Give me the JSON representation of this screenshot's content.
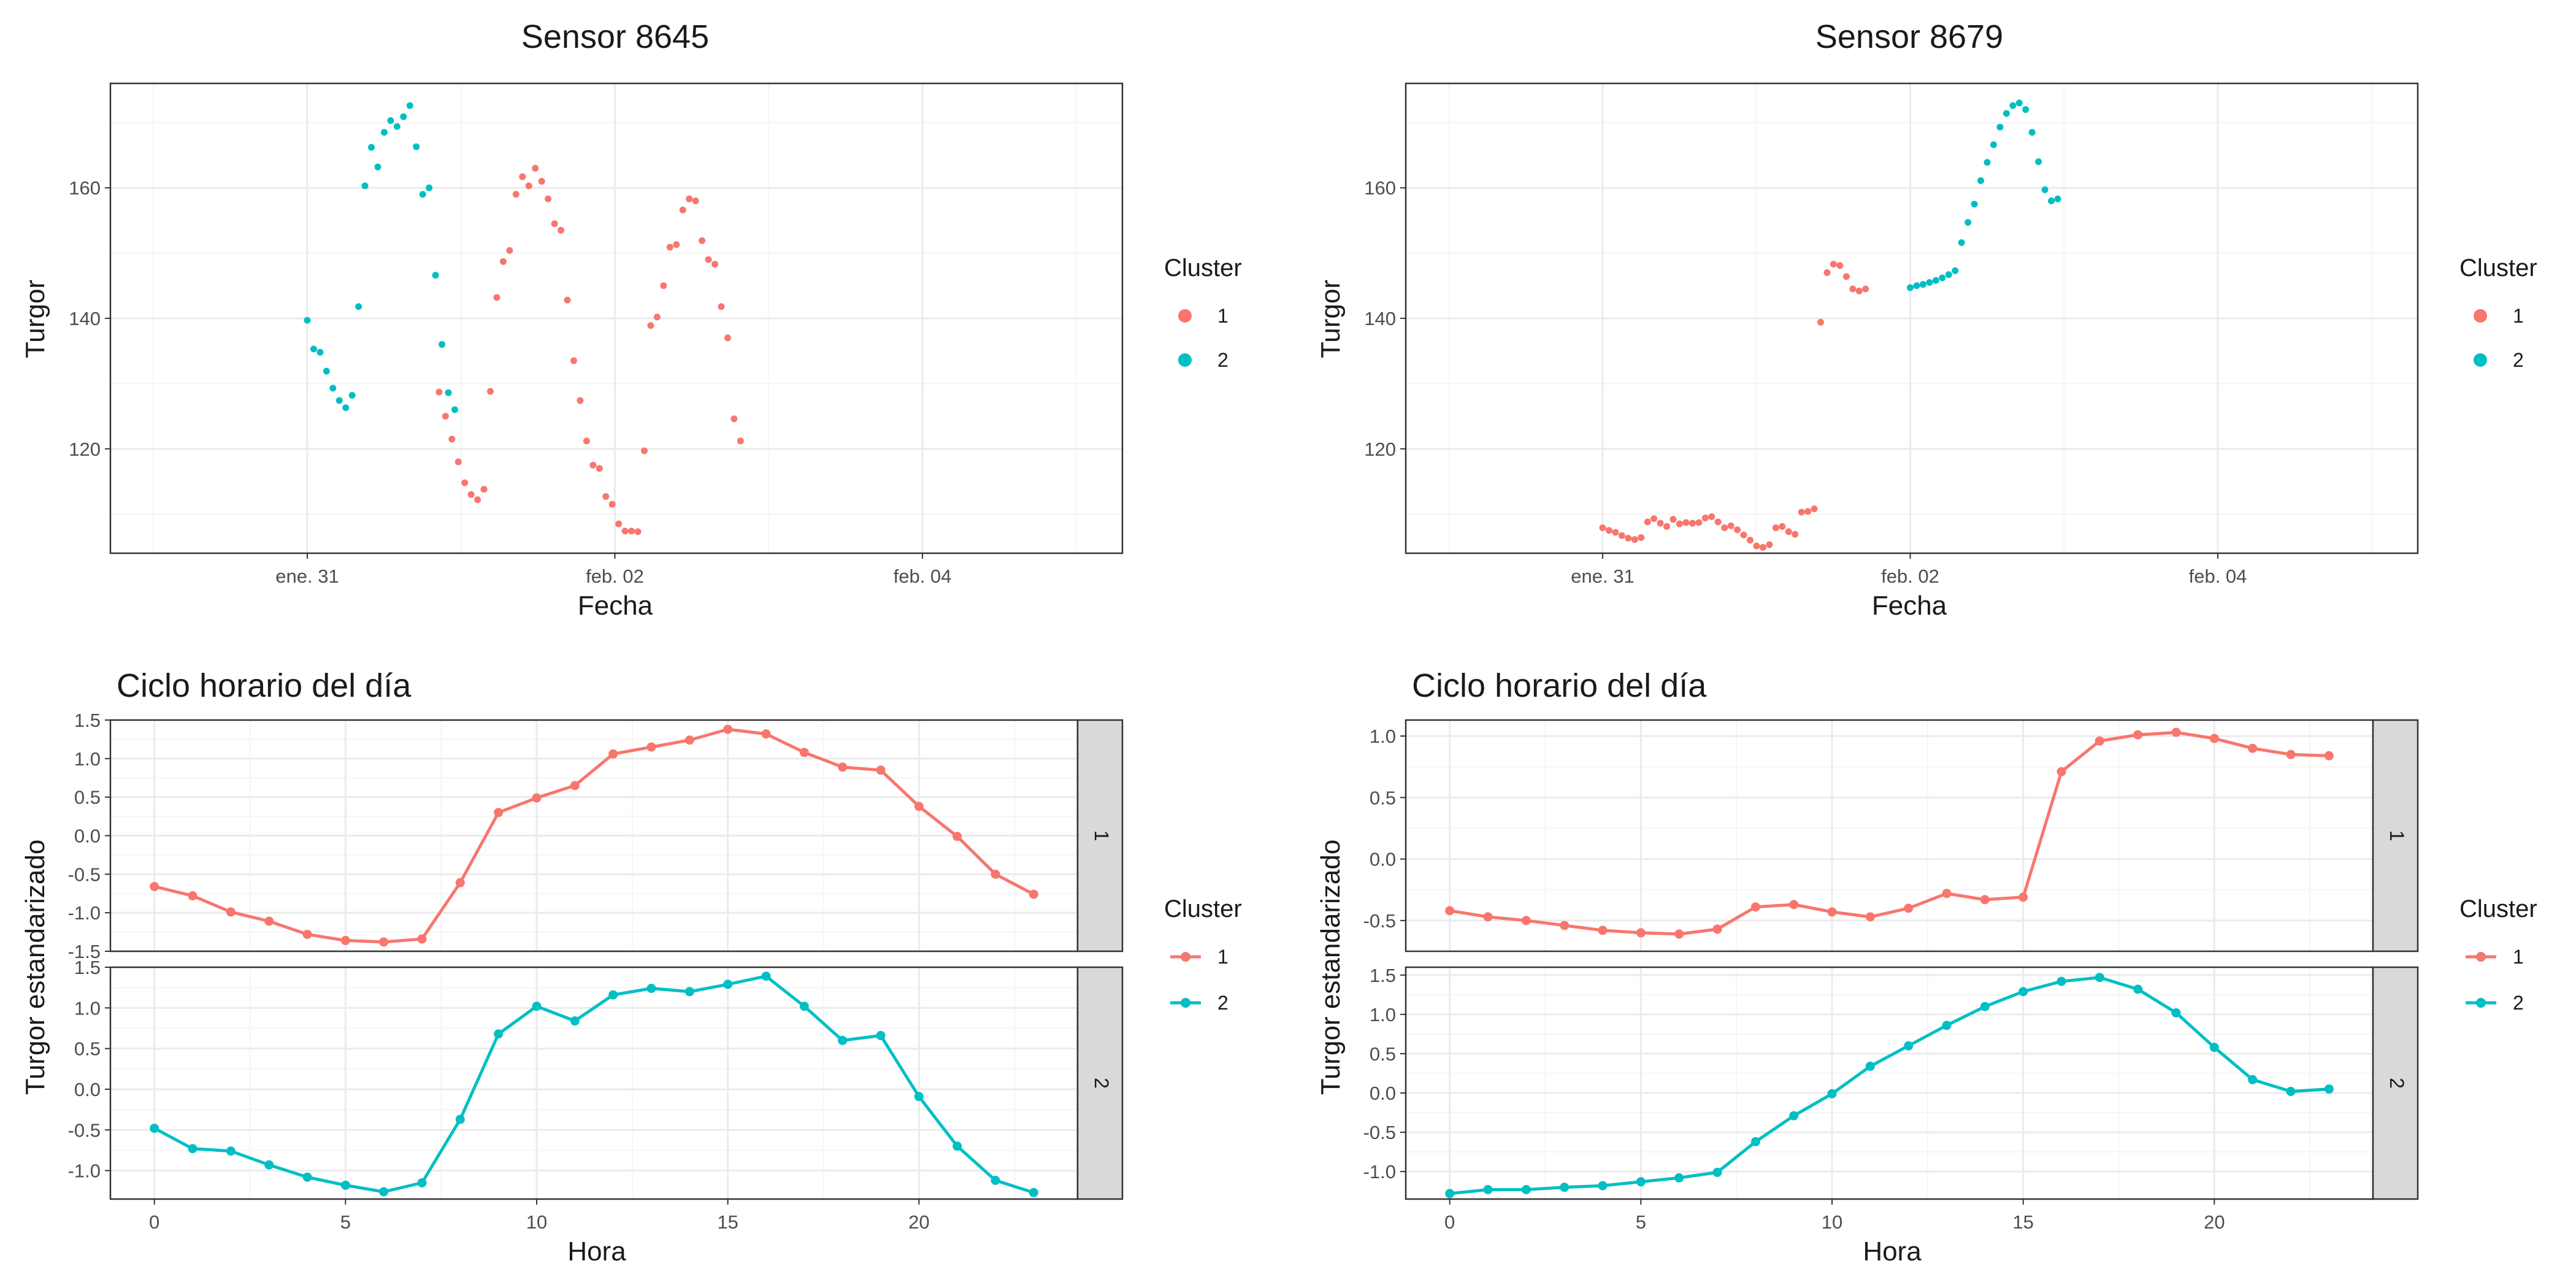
{
  "colors": {
    "cluster_1": "#F8766D",
    "cluster_2": "#00BFC4"
  },
  "chart_data": [
    {
      "id": "sensor8645",
      "type": "scatter",
      "title": "Sensor 8645",
      "xlabel": "Fecha",
      "ylabel": "Turgor",
      "x_ticks": [
        {
          "t": 0,
          "label": "ene. 31"
        },
        {
          "t": 2,
          "label": "feb. 02"
        },
        {
          "t": 4,
          "label": "feb. 04"
        }
      ],
      "x_unit": "días desde ene. 31",
      "xlim": [
        -1.28,
        5.3
      ],
      "y_ticks": [
        120,
        140,
        160
      ],
      "ylim": [
        104,
        176
      ],
      "legend": {
        "title": "Cluster",
        "entries": [
          "1",
          "2"
        ],
        "position": "right"
      },
      "series": [
        {
          "name": "1",
          "color": "#F8766D",
          "t0": 0.857,
          "dt": 0.0417,
          "y": [
            128.7,
            125,
            121.5,
            118,
            114.8,
            113,
            112.2,
            113.8,
            128.8,
            143.2,
            148.7,
            150.4,
            159,
            161.7,
            160.3,
            163,
            161,
            158.3,
            154.5,
            153.5,
            142.8,
            133.5,
            127.4,
            121.2,
            117.5,
            117,
            112.7,
            111.5,
            108.5,
            107.4,
            107.4,
            107.3,
            119.7,
            138.9,
            140.2,
            145,
            150.9,
            151.3,
            156.6,
            158.3,
            158,
            151.9,
            149,
            148.3,
            141.8,
            137,
            124.6,
            121.2
          ]
        },
        {
          "name": "2",
          "color": "#00BFC4",
          "t0": 0.0,
          "dt": 0.0417,
          "y": [
            139.7,
            135.3,
            134.8,
            131.9,
            129.3,
            127.4,
            126.3,
            128.2,
            141.8,
            160.3,
            166.2,
            163.2,
            168.5,
            170.3,
            169.4,
            170.9,
            172.6,
            166.3,
            159,
            160,
            146.6,
            136,
            128.6,
            126
          ]
        }
      ]
    },
    {
      "id": "sensor8679",
      "type": "scatter",
      "title": "Sensor 8679",
      "xlabel": "Fecha",
      "ylabel": "Turgor",
      "x_ticks": [
        {
          "t": 0,
          "label": "ene. 31"
        },
        {
          "t": 2,
          "label": "feb. 02"
        },
        {
          "t": 4,
          "label": "feb. 04"
        }
      ],
      "x_unit": "días desde ene. 31",
      "xlim": [
        -1.28,
        5.3
      ],
      "y_ticks": [
        120,
        140,
        160
      ],
      "ylim": [
        104,
        176
      ],
      "legend": {
        "title": "Cluster",
        "entries": [
          "1",
          "2"
        ],
        "position": "right"
      },
      "series": [
        {
          "name": "1",
          "color": "#F8766D",
          "t0": 0.0,
          "dt": 0.0417,
          "y": [
            107.9,
            107.5,
            107.2,
            106.7,
            106.3,
            106.1,
            106.4,
            108.8,
            109.3,
            108.6,
            108.1,
            109.2,
            108.5,
            108.7,
            108.6,
            108.7,
            109.4,
            109.6,
            108.8,
            107.9,
            108.2,
            107.6,
            106.8,
            106,
            105.1,
            104.9,
            105.3,
            107.9,
            108.1,
            107.3,
            106.9,
            110.3,
            110.4,
            110.8,
            139.4,
            147,
            148.3,
            148.1,
            146.4,
            144.5,
            144.2,
            144.5
          ]
        },
        {
          "name": "2",
          "color": "#00BFC4",
          "t0": 2.0,
          "dt": 0.0417,
          "y": [
            144.7,
            145,
            145.2,
            145.5,
            145.8,
            146.2,
            146.7,
            147.3,
            151.6,
            154.7,
            157.5,
            161.1,
            163.9,
            166.6,
            169.3,
            171.4,
            172.6,
            173,
            172,
            168.5,
            164,
            159.7,
            158,
            158.3
          ]
        }
      ]
    },
    {
      "id": "ciclo8645",
      "type": "line",
      "title": "Ciclo horario del día",
      "xlabel": "Hora",
      "ylabel": "Turgor estandarizado",
      "x_ticks": [
        0,
        5,
        10,
        15,
        20
      ],
      "xlim": [
        -1.15,
        24.15
      ],
      "legend": {
        "title": "Cluster",
        "entries": [
          "1",
          "2"
        ],
        "position": "right"
      },
      "panels": [
        {
          "strip": "1",
          "color": "#F8766D",
          "ylim": [
            -1.5,
            1.5
          ],
          "y_ticks": [
            -1.5,
            -1.0,
            -0.5,
            0.0,
            0.5,
            1.0,
            1.5
          ],
          "y_tick_labels": [
            "-1.5",
            "-1.0",
            "-0.5",
            "0.0",
            "0.5",
            "1.0",
            "1.5"
          ],
          "x": [
            0,
            1,
            2,
            3,
            4,
            5,
            6,
            7,
            8,
            9,
            10,
            11,
            12,
            13,
            14,
            15,
            16,
            17,
            18,
            19,
            20,
            21,
            22,
            23
          ],
          "y": [
            -0.66,
            -0.78,
            -0.99,
            -1.11,
            -1.28,
            -1.36,
            -1.38,
            -1.34,
            -0.61,
            0.3,
            0.49,
            0.65,
            1.06,
            1.15,
            1.24,
            1.38,
            1.32,
            1.08,
            0.89,
            0.85,
            0.38,
            -0.01,
            -0.5,
            -0.76
          ]
        },
        {
          "strip": "2",
          "color": "#00BFC4",
          "ylim": [
            -1.35,
            1.5
          ],
          "y_ticks": [
            -1.0,
            -0.5,
            0.0,
            0.5,
            1.0,
            1.5
          ],
          "y_tick_labels": [
            "-1.0",
            "-0.5",
            "0.0",
            "0.5",
            "1.0",
            "1.5"
          ],
          "x": [
            0,
            1,
            2,
            3,
            4,
            5,
            6,
            7,
            8,
            9,
            10,
            11,
            12,
            13,
            14,
            15,
            16,
            17,
            18,
            19,
            20,
            21,
            22,
            23
          ],
          "y": [
            -0.48,
            -0.73,
            -0.76,
            -0.93,
            -1.08,
            -1.18,
            -1.26,
            -1.15,
            -0.37,
            0.68,
            1.02,
            0.84,
            1.16,
            1.24,
            1.2,
            1.29,
            1.39,
            1.02,
            0.6,
            0.66,
            -0.09,
            -0.7,
            -1.12,
            -1.27
          ]
        }
      ]
    },
    {
      "id": "ciclo8679",
      "type": "line",
      "title": "Ciclo horario del día",
      "xlabel": "Hora",
      "ylabel": "Turgor estandarizado",
      "x_ticks": [
        0,
        5,
        10,
        15,
        20
      ],
      "xlim": [
        -1.15,
        24.15
      ],
      "legend": {
        "title": "Cluster",
        "entries": [
          "1",
          "2"
        ],
        "position": "right"
      },
      "panels": [
        {
          "strip": "1",
          "color": "#F8766D",
          "ylim": [
            -0.75,
            1.13
          ],
          "y_ticks": [
            -0.5,
            0.0,
            0.5,
            1.0
          ],
          "y_tick_labels": [
            "-0.5",
            "0.0",
            "0.5",
            "1.0"
          ],
          "x": [
            0,
            1,
            2,
            3,
            4,
            5,
            6,
            7,
            8,
            9,
            10,
            11,
            12,
            13,
            14,
            15,
            16,
            17,
            18,
            19,
            20,
            21,
            22,
            23
          ],
          "y": [
            -0.42,
            -0.47,
            -0.5,
            -0.54,
            -0.58,
            -0.6,
            -0.61,
            -0.57,
            -0.39,
            -0.37,
            -0.43,
            -0.47,
            -0.4,
            -0.28,
            -0.33,
            -0.31,
            0.71,
            0.96,
            1.01,
            1.03,
            0.98,
            0.9,
            0.85,
            0.84
          ]
        },
        {
          "strip": "2",
          "color": "#00BFC4",
          "ylim": [
            -1.35,
            1.6
          ],
          "y_ticks": [
            -1.0,
            -0.5,
            0.0,
            0.5,
            1.0,
            1.5
          ],
          "y_tick_labels": [
            "-1.0",
            "-0.5",
            "0.0",
            "0.5",
            "1.0",
            "1.5"
          ],
          "x": [
            0,
            1,
            2,
            3,
            4,
            5,
            6,
            7,
            8,
            9,
            10,
            11,
            12,
            13,
            14,
            15,
            16,
            17,
            18,
            19,
            20,
            21,
            22,
            23
          ],
          "y": [
            -1.28,
            -1.23,
            -1.23,
            -1.2,
            -1.18,
            -1.13,
            -1.08,
            -1.01,
            -0.62,
            -0.29,
            -0.01,
            0.34,
            0.6,
            0.86,
            1.1,
            1.29,
            1.42,
            1.47,
            1.32,
            1.02,
            0.58,
            0.17,
            0.02,
            0.05
          ]
        }
      ]
    }
  ]
}
